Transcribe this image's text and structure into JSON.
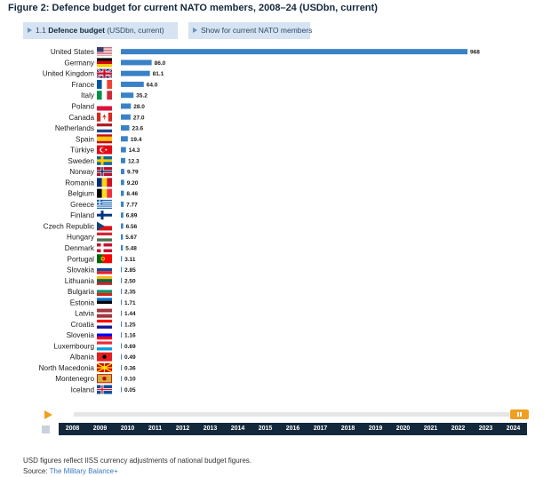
{
  "title": "Figure 2: Defence budget for current NATO members, 2008–24 (USDbn, current)",
  "controls": {
    "metric_prefix": "1.1",
    "metric_bold": "Defence budget",
    "metric_suffix": "(USDbn, current)",
    "scope_label": "Show for current NATO members"
  },
  "timeline": {
    "years": [
      "2008",
      "2009",
      "2010",
      "2011",
      "2012",
      "2013",
      "2014",
      "2015",
      "2016",
      "2017",
      "2018",
      "2019",
      "2020",
      "2021",
      "2022",
      "2023",
      "2024"
    ],
    "selected_year": "2024"
  },
  "footer": {
    "note": "USD figures reflect IISS currency adjustments of national budget figures.",
    "source_prefix": "Source:",
    "source_link": "The Military Balance+"
  },
  "colors": {
    "bar": "#3a82c8",
    "accent": "#f0a020",
    "navy": "#14283c"
  },
  "chart_data": {
    "type": "bar",
    "orientation": "horizontal",
    "title": "Figure 2: Defence budget for current NATO members, 2008–24 (USDbn, current)",
    "xlim": [
      0,
      968
    ],
    "categories": [
      "United States",
      "Germany",
      "United Kingdom",
      "France",
      "Italy",
      "Poland",
      "Canada",
      "Netherlands",
      "Spain",
      "Türkiye",
      "Sweden",
      "Norway",
      "Romania",
      "Belgium",
      "Greece",
      "Finland",
      "Czech Republic",
      "Hungary",
      "Denmark",
      "Portugal",
      "Slovakia",
      "Lithuania",
      "Bulgaria",
      "Estonia",
      "Latvia",
      "Croatia",
      "Slovenia",
      "Luxembourg",
      "Albania",
      "North Macedonia",
      "Montenegro",
      "Iceland"
    ],
    "values": [
      968,
      86.0,
      81.1,
      64.0,
      35.2,
      28.0,
      27.0,
      23.6,
      19.4,
      14.3,
      12.3,
      9.79,
      9.2,
      8.46,
      7.77,
      6.89,
      6.56,
      5.67,
      5.48,
      3.11,
      2.85,
      2.5,
      2.35,
      1.71,
      1.44,
      1.25,
      1.16,
      0.69,
      0.49,
      0.36,
      0.1,
      0.05
    ],
    "labels": [
      "968",
      "86.0",
      "81.1",
      "64.0",
      "35.2",
      "28.0",
      "27.0",
      "23.6",
      "19.4",
      "14.3",
      "12.3",
      "9.79",
      "9.20",
      "8.46",
      "7.77",
      "6.89",
      "6.56",
      "5.67",
      "5.48",
      "3.11",
      "2.85",
      "2.50",
      "2.35",
      "1.71",
      "1.44",
      "1.25",
      "1.16",
      "0.69",
      "0.49",
      "0.36",
      "0.10",
      "0.05"
    ],
    "flags": [
      {
        "type": "usa"
      },
      {
        "type": "h",
        "c": [
          "#000000",
          "#dd0000",
          "#ffce00"
        ]
      },
      {
        "type": "uk"
      },
      {
        "type": "v",
        "c": [
          "#0055a4",
          "#ffffff",
          "#ef4135"
        ]
      },
      {
        "type": "v",
        "c": [
          "#009246",
          "#ffffff",
          "#ce2b37"
        ]
      },
      {
        "type": "h",
        "c": [
          "#ffffff",
          "#dc143c"
        ]
      },
      {
        "type": "canada"
      },
      {
        "type": "h",
        "c": [
          "#ae1c28",
          "#ffffff",
          "#21468b"
        ]
      },
      {
        "type": "h",
        "c": [
          "#c60b1e",
          "#ffc400",
          "#ffc400",
          "#c60b1e"
        ]
      },
      {
        "type": "turkey"
      },
      {
        "type": "nordic",
        "bg": "#006aa7",
        "cross": "#fecc00"
      },
      {
        "type": "nordic",
        "bg": "#ba0c2f",
        "cross": "#ffffff",
        "inner": "#00205b"
      },
      {
        "type": "v",
        "c": [
          "#002b7f",
          "#fcd116",
          "#ce1126"
        ]
      },
      {
        "type": "v",
        "c": [
          "#000000",
          "#fdda24",
          "#ef3340"
        ]
      },
      {
        "type": "greece"
      },
      {
        "type": "nordic",
        "bg": "#ffffff",
        "cross": "#003580"
      },
      {
        "type": "czech"
      },
      {
        "type": "h",
        "c": [
          "#ce2939",
          "#ffffff",
          "#477050"
        ]
      },
      {
        "type": "nordic",
        "bg": "#c8102e",
        "cross": "#ffffff"
      },
      {
        "type": "portugal"
      },
      {
        "type": "h",
        "c": [
          "#ffffff",
          "#0b4ea2",
          "#ee1c25"
        ]
      },
      {
        "type": "h",
        "c": [
          "#fdb913",
          "#006a44",
          "#c1272d"
        ]
      },
      {
        "type": "h",
        "c": [
          "#ffffff",
          "#00966e",
          "#d62612"
        ]
      },
      {
        "type": "h",
        "c": [
          "#0072ce",
          "#000000",
          "#ffffff"
        ]
      },
      {
        "type": "h",
        "c": [
          "#9e3039",
          "#9e3039",
          "#ffffff",
          "#9e3039",
          "#9e3039"
        ]
      },
      {
        "type": "h",
        "c": [
          "#ff0000",
          "#ffffff",
          "#171796"
        ]
      },
      {
        "type": "h",
        "c": [
          "#ffffff",
          "#0000ff",
          "#ff0000"
        ]
      },
      {
        "type": "h",
        "c": [
          "#ed2939",
          "#ffffff",
          "#00a1de"
        ]
      },
      {
        "type": "solid",
        "c": "#e41e20",
        "mark": "#000000"
      },
      {
        "type": "macedonia"
      },
      {
        "type": "solid",
        "c": "#d3ae3b",
        "border": "#c40308",
        "mark": "#c40308"
      },
      {
        "type": "nordic",
        "bg": "#02529c",
        "cross": "#ffffff",
        "inner": "#dc1e35"
      }
    ]
  }
}
